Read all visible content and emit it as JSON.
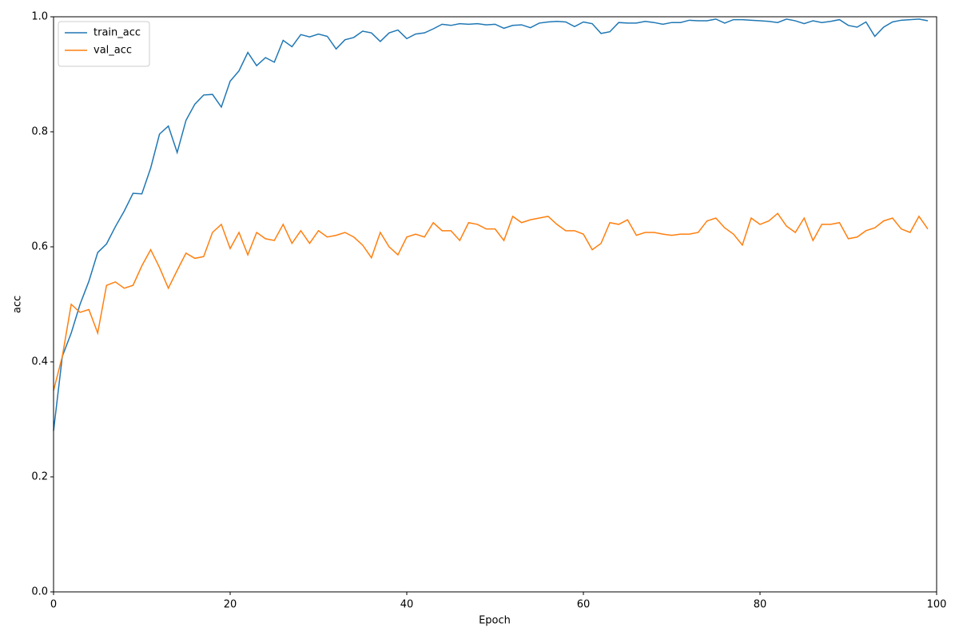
{
  "chart_data": {
    "type": "line",
    "xlabel": "Epoch",
    "ylabel": "acc",
    "x": [
      0,
      1,
      2,
      3,
      4,
      5,
      6,
      7,
      8,
      9,
      10,
      11,
      12,
      13,
      14,
      15,
      16,
      17,
      18,
      19,
      20,
      21,
      22,
      23,
      24,
      25,
      26,
      27,
      28,
      29,
      30,
      31,
      32,
      33,
      34,
      35,
      36,
      37,
      38,
      39,
      40,
      41,
      42,
      43,
      44,
      45,
      46,
      47,
      48,
      49,
      50,
      51,
      52,
      53,
      54,
      55,
      56,
      57,
      58,
      59,
      60,
      61,
      62,
      63,
      64,
      65,
      66,
      67,
      68,
      69,
      70,
      71,
      72,
      73,
      74,
      75,
      76,
      77,
      78,
      79,
      80,
      81,
      82,
      83,
      84,
      85,
      86,
      87,
      88,
      89,
      90,
      91,
      92,
      93,
      94,
      95,
      96,
      97,
      98,
      99
    ],
    "series": [
      {
        "name": "train_acc",
        "color": "#1f77b4",
        "values": [
          0.28,
          0.41,
          0.45,
          0.5,
          0.54,
          0.59,
          0.605,
          0.635,
          0.662,
          0.693,
          0.692,
          0.737,
          0.796,
          0.81,
          0.764,
          0.82,
          0.848,
          0.864,
          0.865,
          0.843,
          0.888,
          0.906,
          0.938,
          0.915,
          0.929,
          0.921,
          0.959,
          0.948,
          0.969,
          0.965,
          0.97,
          0.966,
          0.944,
          0.96,
          0.964,
          0.975,
          0.972,
          0.957,
          0.972,
          0.977,
          0.962,
          0.97,
          0.972,
          0.979,
          0.987,
          0.985,
          0.988,
          0.987,
          0.988,
          0.986,
          0.987,
          0.98,
          0.985,
          0.986,
          0.981,
          0.989,
          0.991,
          0.992,
          0.991,
          0.983,
          0.991,
          0.988,
          0.971,
          0.974,
          0.99,
          0.989,
          0.989,
          0.992,
          0.99,
          0.987,
          0.99,
          0.99,
          0.994,
          0.993,
          0.993,
          0.996,
          0.989,
          0.995,
          0.995,
          0.994,
          0.993,
          0.992,
          0.99,
          0.996,
          0.993,
          0.988,
          0.993,
          0.99,
          0.992,
          0.995,
          0.985,
          0.982,
          0.991,
          0.966,
          0.982,
          0.991,
          0.994,
          0.995,
          0.996,
          0.993
        ]
      },
      {
        "name": "val_acc",
        "color": "#ff7f0e",
        "values": [
          0.35,
          0.41,
          0.5,
          0.486,
          0.491,
          0.45,
          0.533,
          0.539,
          0.528,
          0.533,
          0.567,
          0.595,
          0.564,
          0.528,
          0.559,
          0.589,
          0.58,
          0.583,
          0.625,
          0.639,
          0.597,
          0.625,
          0.586,
          0.625,
          0.614,
          0.611,
          0.639,
          0.606,
          0.628,
          0.606,
          0.628,
          0.617,
          0.62,
          0.625,
          0.617,
          0.603,
          0.581,
          0.625,
          0.6,
          0.586,
          0.617,
          0.622,
          0.617,
          0.642,
          0.628,
          0.628,
          0.611,
          0.642,
          0.639,
          0.631,
          0.631,
          0.611,
          0.653,
          0.642,
          0.647,
          0.65,
          0.653,
          0.639,
          0.628,
          0.628,
          0.622,
          0.595,
          0.606,
          0.642,
          0.639,
          0.647,
          0.62,
          0.625,
          0.625,
          0.622,
          0.62,
          0.622,
          0.622,
          0.625,
          0.645,
          0.65,
          0.633,
          0.622,
          0.603,
          0.65,
          0.639,
          0.645,
          0.658,
          0.636,
          0.625,
          0.65,
          0.611,
          0.639,
          0.639,
          0.642,
          0.614,
          0.617,
          0.628,
          0.633,
          0.645,
          0.65,
          0.631,
          0.625,
          0.653,
          0.631
        ]
      }
    ],
    "xlim": [
      0,
      100
    ],
    "xticks": [
      0,
      20,
      40,
      60,
      80,
      100
    ],
    "ylim": [
      0,
      1
    ],
    "yticks": [
      {
        "value": 0,
        "label": "0.0"
      },
      0.2,
      0.4,
      0.6,
      0.8,
      {
        "value": 1,
        "label": "1.0"
      }
    ],
    "legend": "upper left",
    "grid": false
  }
}
